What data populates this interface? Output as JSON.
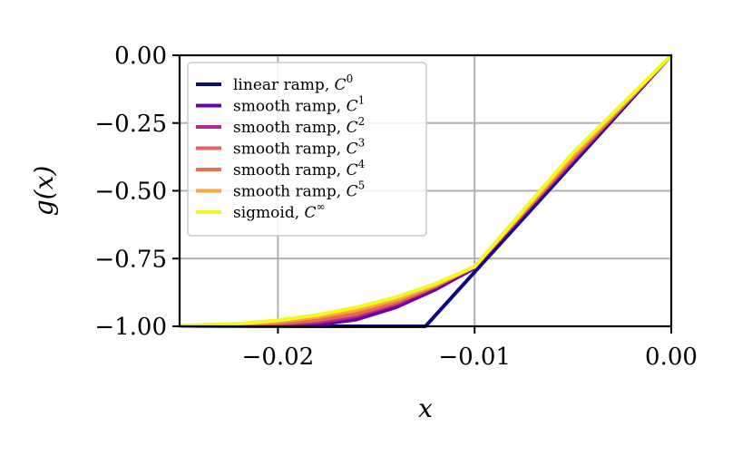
{
  "chart_data": {
    "type": "line",
    "title": "",
    "xlabel": "x",
    "ylabel": "g(x)",
    "xlim": [
      -0.025,
      0.0
    ],
    "ylim": [
      -1.0,
      0.0
    ],
    "grid": true,
    "legend_position": "top-left",
    "x_ticks": [
      {
        "value": -0.02,
        "label": "−0.02"
      },
      {
        "value": -0.01,
        "label": "−0.01"
      },
      {
        "value": 0.0,
        "label": "0.00"
      }
    ],
    "y_ticks": [
      {
        "value": 0.0,
        "label": "0.00"
      },
      {
        "value": -0.25,
        "label": "−0.25"
      },
      {
        "value": -0.5,
        "label": "−0.50"
      },
      {
        "value": -0.75,
        "label": "−0.75"
      },
      {
        "value": -1.0,
        "label": "−1.00"
      }
    ],
    "series": [
      {
        "name": "linear ramp, C⁰",
        "legend_text": "linear ramp, ",
        "legend_sup": "0",
        "color": "#0d0887",
        "x": [
          -0.025,
          -0.0125,
          -0.01,
          -0.005,
          0.0
        ],
        "y": [
          -1.0,
          -1.0,
          -0.8,
          -0.4,
          0.0
        ]
      },
      {
        "name": "smooth ramp, C¹",
        "legend_text": "smooth ramp, ",
        "legend_sup": "1",
        "color": "#6a00a8",
        "x": [
          -0.025,
          -0.02,
          -0.018,
          -0.016,
          -0.014,
          -0.012,
          -0.01,
          -0.005,
          0.0
        ],
        "y": [
          -1.0,
          -1.0,
          -0.995,
          -0.975,
          -0.93,
          -0.865,
          -0.785,
          -0.39,
          0.0
        ]
      },
      {
        "name": "smooth ramp, C²",
        "legend_text": "smooth ramp, ",
        "legend_sup": "2",
        "color": "#b12a90",
        "x": [
          -0.025,
          -0.022,
          -0.02,
          -0.018,
          -0.016,
          -0.014,
          -0.012,
          -0.01,
          -0.005,
          0.0
        ],
        "y": [
          -1.0,
          -0.999,
          -0.995,
          -0.985,
          -0.963,
          -0.918,
          -0.855,
          -0.78,
          -0.385,
          0.0
        ]
      },
      {
        "name": "smooth ramp, C³",
        "legend_text": "smooth ramp, ",
        "legend_sup": "3",
        "color": "#e16462",
        "x": [
          -0.025,
          -0.022,
          -0.02,
          -0.018,
          -0.016,
          -0.014,
          -0.012,
          -0.01,
          -0.005,
          0.0
        ],
        "y": [
          -1.0,
          -0.997,
          -0.99,
          -0.978,
          -0.955,
          -0.912,
          -0.852,
          -0.78,
          -0.38,
          0.0
        ]
      },
      {
        "name": "smooth ramp, C⁴",
        "legend_text": "smooth ramp, ",
        "legend_sup": "4",
        "color": "#e86f48",
        "x": [
          -0.025,
          -0.022,
          -0.02,
          -0.018,
          -0.016,
          -0.014,
          -0.012,
          -0.01,
          -0.005,
          0.0
        ],
        "y": [
          -1.0,
          -0.995,
          -0.987,
          -0.972,
          -0.948,
          -0.907,
          -0.85,
          -0.78,
          -0.375,
          0.0
        ]
      },
      {
        "name": "smooth ramp, C⁵",
        "legend_text": "smooth ramp, ",
        "legend_sup": "5",
        "color": "#fca636",
        "x": [
          -0.025,
          -0.022,
          -0.02,
          -0.018,
          -0.016,
          -0.014,
          -0.012,
          -0.01,
          -0.005,
          0.0
        ],
        "y": [
          -1.0,
          -0.993,
          -0.983,
          -0.966,
          -0.94,
          -0.902,
          -0.848,
          -0.78,
          -0.37,
          0.0
        ]
      },
      {
        "name": "sigmoid, C^∞",
        "legend_text": "sigmoid, ",
        "legend_sup": "∞",
        "color": "#f0f921",
        "x": [
          -0.025,
          -0.022,
          -0.02,
          -0.018,
          -0.016,
          -0.014,
          -0.012,
          -0.01,
          -0.005,
          0.0
        ],
        "y": [
          -0.998,
          -0.99,
          -0.978,
          -0.958,
          -0.93,
          -0.893,
          -0.843,
          -0.78,
          -0.36,
          0.0
        ]
      }
    ]
  }
}
